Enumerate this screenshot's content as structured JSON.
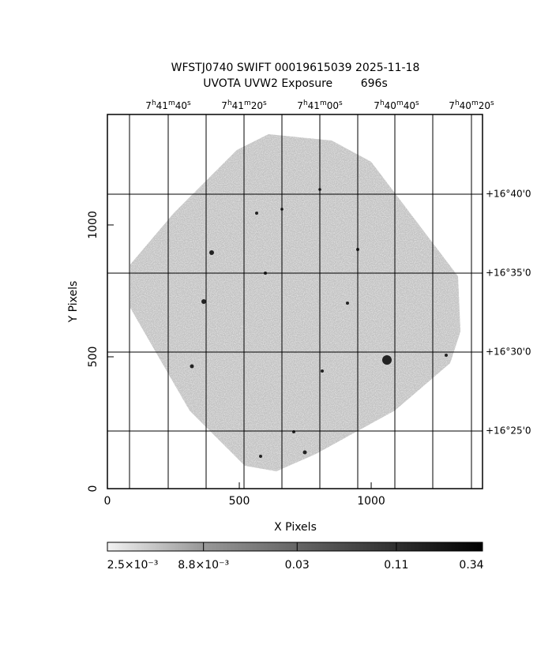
{
  "chart_data": {
    "type": "image",
    "title": "WFSTJ0740 SWIFT 00019615039 2025-11-18",
    "subtitle": "UVOTA UVW2 Exposure        696s",
    "xlabel": "X Pixels",
    "ylabel": "Y Pixels",
    "xlim": [
      0,
      1422
    ],
    "ylim": [
      0,
      1419
    ],
    "xticks": [
      0,
      500,
      1000
    ],
    "yticks": [
      0,
      500,
      1000
    ],
    "ra_labels": [
      "7h41m40s",
      "7h41m20s",
      "7h41m00s",
      "7h40m40s",
      "7h40m20s"
    ],
    "dec_labels": [
      "+16°40'0",
      "+16°35'0",
      "+16°30'0",
      "+16°25'0"
    ],
    "colorbar": {
      "log": true,
      "lim": [
        0.0025,
        0.34
      ],
      "ticks": [
        {
          "value": 0.0025,
          "label": "2.5×10⁻³"
        },
        {
          "value": 0.0088,
          "label": "8.8×10⁻³"
        },
        0.03,
        0.11,
        0.34
      ]
    }
  }
}
